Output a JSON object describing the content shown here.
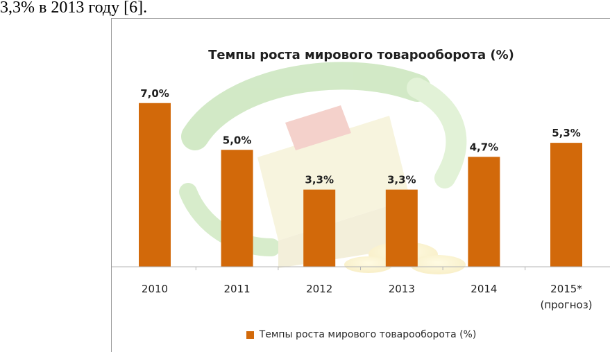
{
  "document": {
    "text_line": "3,3% в 2013 году [6]."
  },
  "colors": {
    "bar": "#D2690A",
    "axis": "#b5b5b5"
  },
  "chart_data": {
    "type": "bar",
    "title": "Темпы роста мирового товарооборота (%)",
    "categories": [
      "2010",
      "2011",
      "2012",
      "2013",
      "2014",
      "2015*"
    ],
    "category_sublabels": [
      "",
      "",
      "",
      "",
      "",
      "(прогноз)"
    ],
    "series": [
      {
        "name": "Темпы роста мирового товарооборота (%)",
        "values": [
          7.0,
          5.0,
          3.3,
          3.3,
          4.7,
          5.3
        ],
        "labels": [
          "7,0%",
          "5,0%",
          "3,3%",
          "3,3%",
          "4,7%",
          "5,3%"
        ]
      }
    ],
    "ylim": [
      0,
      8
    ],
    "grid": false,
    "legend": "bottom"
  }
}
